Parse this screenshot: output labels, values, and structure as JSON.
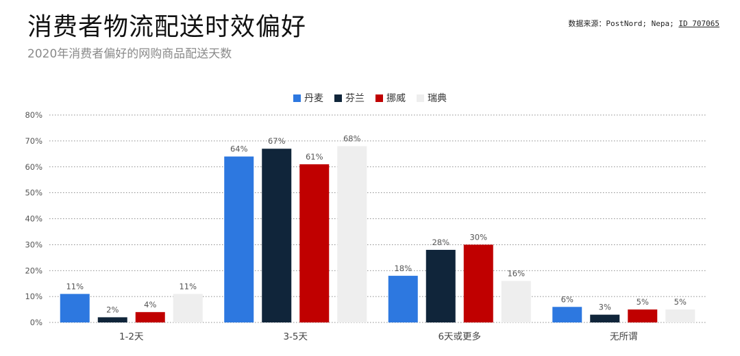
{
  "header": {
    "title": "消费者物流配送时效偏好",
    "subtitle": "2020年消费者偏好的网购商品配送天数",
    "source_prefix": "数据来源：PostNord; Nepa; ",
    "source_id": "ID 707065"
  },
  "chart_data": {
    "type": "bar",
    "title": "消费者物流配送时效偏好",
    "subtitle": "2020年消费者偏好的网购商品配送天数",
    "categories": [
      "1-2天",
      "3-5天",
      "6天或更多",
      "无所谓"
    ],
    "series": [
      {
        "name": "丹麦",
        "color": "#2d78e0",
        "values": [
          11,
          64,
          18,
          6
        ]
      },
      {
        "name": "芬兰",
        "color": "#10253a",
        "values": [
          2,
          67,
          28,
          3
        ]
      },
      {
        "name": "挪威",
        "color": "#c00000",
        "values": [
          4,
          61,
          30,
          5
        ]
      },
      {
        "name": "瑞典",
        "color": "#eeeeee",
        "values": [
          11,
          68,
          16,
          5
        ]
      }
    ],
    "ylim": [
      0,
      80
    ],
    "yticks": [
      "0%",
      "10%",
      "20%",
      "30%",
      "40%",
      "50%",
      "60%",
      "70%",
      "80%"
    ],
    "value_suffix": "%",
    "legend_position": "top-center",
    "grid": "horizontal-dotted"
  }
}
